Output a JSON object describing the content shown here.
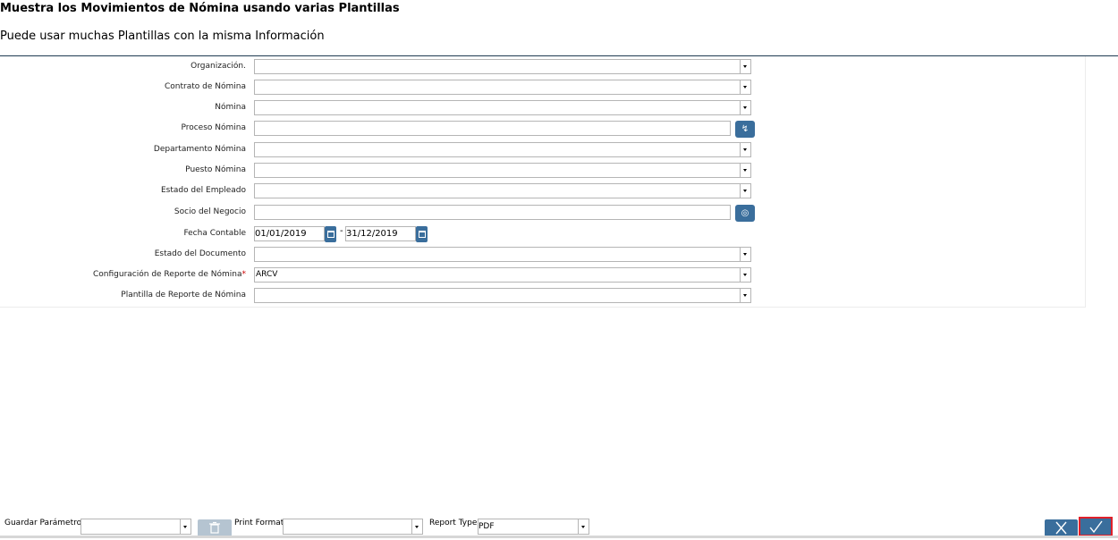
{
  "header": {
    "title": "Muestra los Movimientos de Nómina usando varias Plantillas",
    "subtitle": "Puede usar muchas Plantillas con la misma Información"
  },
  "form": {
    "organizacion": {
      "label": "Organización.",
      "value": ""
    },
    "contrato": {
      "label": "Contrato de Nómina",
      "value": ""
    },
    "nomina": {
      "label": "Nómina",
      "value": ""
    },
    "proceso": {
      "label": "Proceso Nómina",
      "value": ""
    },
    "departamento": {
      "label": "Departamento Nómina",
      "value": ""
    },
    "puesto": {
      "label": "Puesto Nómina",
      "value": ""
    },
    "estado_empleado": {
      "label": "Estado del Empleado",
      "value": ""
    },
    "socio": {
      "label": "Socio del Negocio",
      "value": ""
    },
    "fecha": {
      "label": "Fecha Contable",
      "from": "01/01/2019",
      "separator": "-",
      "to": "31/12/2019"
    },
    "estado_documento": {
      "label": "Estado del Documento",
      "value": ""
    },
    "configuracion": {
      "label": "Configuración de Reporte de Nómina",
      "required_mark": "*",
      "value": "ARCV"
    },
    "plantilla": {
      "label": "Plantilla de Reporte de Nómina",
      "value": ""
    }
  },
  "footer": {
    "guardar_label": "Guardar Parámetro",
    "guardar_value": "",
    "print_format_label": "Print Format",
    "print_format_value": "",
    "report_type_label": "Report Type",
    "report_type_value": "PDF"
  },
  "icons": {
    "proceso_button": "lightning-icon",
    "socio_button": "search-icon",
    "calendar": "calendar-icon",
    "trash": "trash-icon",
    "cancel": "close-icon",
    "ok": "check-icon"
  },
  "colors": {
    "accent": "#3a6e9c",
    "highlight": "#e0202a",
    "required": "#cc0000"
  }
}
